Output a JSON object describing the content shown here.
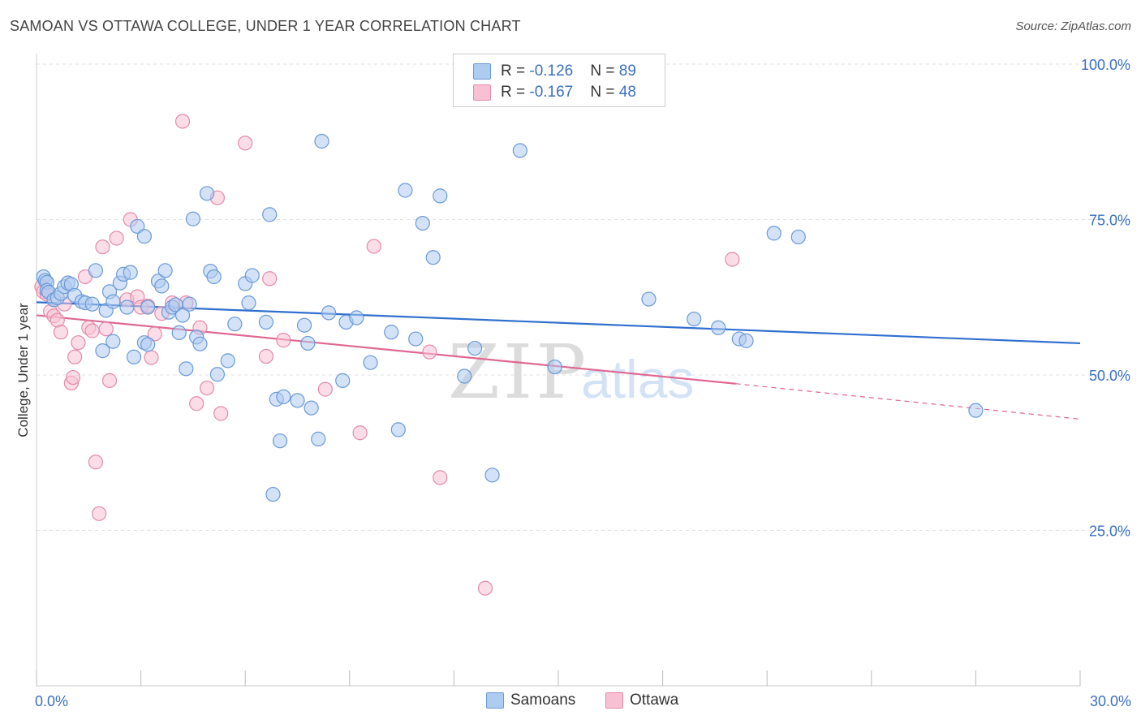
{
  "header": {
    "title": "SAMOAN VS OTTAWA COLLEGE, UNDER 1 YEAR CORRELATION CHART",
    "source": "Source: ZipAtlas.com"
  },
  "legend": {
    "rows": [
      {
        "r_label": "R = ",
        "r_value": "-0.126",
        "n_label": "N = ",
        "n_value": "89"
      },
      {
        "r_label": "R = ",
        "r_value": "-0.167",
        "n_label": "N = ",
        "n_value": "48"
      }
    ]
  },
  "bottom_legend": {
    "items": [
      "Samoans",
      "Ottawa"
    ]
  },
  "watermark": {
    "zip": "ZIP",
    "atlas": "atlas"
  },
  "colors": {
    "samoans_fill": "#aecbf0",
    "samoans_stroke": "#6a9ad8",
    "samoans_line": "#2f6fcf",
    "ottawa_fill": "#f7c1d3",
    "ottawa_stroke": "#e48aaa",
    "ottawa_line": "#e06792",
    "tick_label": "#3a6fc4",
    "grid": "#e2e2e2"
  },
  "chart_data": {
    "type": "scatter",
    "title": "SAMOAN VS OTTAWA COLLEGE, UNDER 1 YEAR CORRELATION CHART",
    "xlabel": "",
    "ylabel": "College, Under 1 year",
    "xlim": [
      0,
      30
    ],
    "ylim": [
      0,
      100
    ],
    "x_tick_labels": [
      "0.0%",
      "30.0%"
    ],
    "y_tick_labels": [
      "100.0%",
      "75.0%",
      "50.0%",
      "25.0%"
    ],
    "y_ticks": [
      100,
      75,
      50,
      25
    ],
    "grid": true,
    "legend_position": "top-center",
    "series": [
      {
        "name": "Samoans",
        "r": -0.126,
        "n": 89,
        "trend": {
          "x": [
            0,
            30
          ],
          "y": [
            61.7,
            55.1
          ]
        },
        "points": [
          [
            0.2,
            65.8
          ],
          [
            0.25,
            65.2
          ],
          [
            0.3,
            64.9
          ],
          [
            0.3,
            63.6
          ],
          [
            0.35,
            63.3
          ],
          [
            0.5,
            62.1
          ],
          [
            0.6,
            62.4
          ],
          [
            0.7,
            63.1
          ],
          [
            0.8,
            64.2
          ],
          [
            0.9,
            64.8
          ],
          [
            1.0,
            64.6
          ],
          [
            1.1,
            62.8
          ],
          [
            1.3,
            61.8
          ],
          [
            1.4,
            61.6
          ],
          [
            1.6,
            61.4
          ],
          [
            1.7,
            66.8
          ],
          [
            1.9,
            53.9
          ],
          [
            2.0,
            60.4
          ],
          [
            2.1,
            63.4
          ],
          [
            2.2,
            61.8
          ],
          [
            2.2,
            55.4
          ],
          [
            2.4,
            64.8
          ],
          [
            2.5,
            66.2
          ],
          [
            2.6,
            60.9
          ],
          [
            2.7,
            66.5
          ],
          [
            2.8,
            52.9
          ],
          [
            2.9,
            73.9
          ],
          [
            3.1,
            72.3
          ],
          [
            3.2,
            60.9
          ],
          [
            3.1,
            55.2
          ],
          [
            3.2,
            54.9
          ],
          [
            3.5,
            65.1
          ],
          [
            3.6,
            64.3
          ],
          [
            3.7,
            66.8
          ],
          [
            3.8,
            60.1
          ],
          [
            3.9,
            60.9
          ],
          [
            4.0,
            61.3
          ],
          [
            4.1,
            56.8
          ],
          [
            4.2,
            59.6
          ],
          [
            4.3,
            51.0
          ],
          [
            4.4,
            61.4
          ],
          [
            4.5,
            75.1
          ],
          [
            4.6,
            56.1
          ],
          [
            4.7,
            55.0
          ],
          [
            4.9,
            79.2
          ],
          [
            5.0,
            66.7
          ],
          [
            5.1,
            65.8
          ],
          [
            5.2,
            50.1
          ],
          [
            5.5,
            52.3
          ],
          [
            5.7,
            58.2
          ],
          [
            6.0,
            64.7
          ],
          [
            6.1,
            61.6
          ],
          [
            6.2,
            66.0
          ],
          [
            6.6,
            58.5
          ],
          [
            6.7,
            75.8
          ],
          [
            6.8,
            30.8
          ],
          [
            6.9,
            46.1
          ],
          [
            7.0,
            39.4
          ],
          [
            7.1,
            46.5
          ],
          [
            7.5,
            45.9
          ],
          [
            7.7,
            58.0
          ],
          [
            7.8,
            55.1
          ],
          [
            7.9,
            44.7
          ],
          [
            8.1,
            39.7
          ],
          [
            8.2,
            87.6
          ],
          [
            8.4,
            60.0
          ],
          [
            8.8,
            49.1
          ],
          [
            8.9,
            58.5
          ],
          [
            9.2,
            59.2
          ],
          [
            9.6,
            52.0
          ],
          [
            10.2,
            56.9
          ],
          [
            10.4,
            41.2
          ],
          [
            10.6,
            79.7
          ],
          [
            10.9,
            55.8
          ],
          [
            11.1,
            74.4
          ],
          [
            11.4,
            68.9
          ],
          [
            11.6,
            78.8
          ],
          [
            12.3,
            49.8
          ],
          [
            12.6,
            54.3
          ],
          [
            13.1,
            33.9
          ],
          [
            13.9,
            86.1
          ],
          [
            14.9,
            51.3
          ],
          [
            17.6,
            62.2
          ],
          [
            18.9,
            59.0
          ],
          [
            19.6,
            57.6
          ],
          [
            20.2,
            55.8
          ],
          [
            20.4,
            55.5
          ],
          [
            21.2,
            72.8
          ],
          [
            21.9,
            72.2
          ],
          [
            27.0,
            44.3
          ]
        ]
      },
      {
        "name": "Ottawa",
        "r": -0.167,
        "n": 48,
        "trend": {
          "x": [
            0,
            20.1
          ],
          "y": [
            59.6,
            48.6
          ]
        },
        "trend_dashed": {
          "x": [
            20.1,
            30
          ],
          "y": [
            48.6,
            42.9
          ]
        },
        "points": [
          [
            0.15,
            64.2
          ],
          [
            0.2,
            63.4
          ],
          [
            0.3,
            63.0
          ],
          [
            0.4,
            60.2
          ],
          [
            0.5,
            59.5
          ],
          [
            0.6,
            58.8
          ],
          [
            0.7,
            56.9
          ],
          [
            0.8,
            61.4
          ],
          [
            1.0,
            48.7
          ],
          [
            1.05,
            49.6
          ],
          [
            1.1,
            52.9
          ],
          [
            1.2,
            55.2
          ],
          [
            1.4,
            65.8
          ],
          [
            1.5,
            57.6
          ],
          [
            1.6,
            57.1
          ],
          [
            1.7,
            36.0
          ],
          [
            1.8,
            27.7
          ],
          [
            1.9,
            70.6
          ],
          [
            2.0,
            57.4
          ],
          [
            2.1,
            49.1
          ],
          [
            2.3,
            72.0
          ],
          [
            2.6,
            62.1
          ],
          [
            2.7,
            75.0
          ],
          [
            2.9,
            62.6
          ],
          [
            3.0,
            60.9
          ],
          [
            3.2,
            61.1
          ],
          [
            3.3,
            52.8
          ],
          [
            3.4,
            56.6
          ],
          [
            3.6,
            59.9
          ],
          [
            3.9,
            61.6
          ],
          [
            4.2,
            90.8
          ],
          [
            4.3,
            61.6
          ],
          [
            4.6,
            45.4
          ],
          [
            4.7,
            57.6
          ],
          [
            4.9,
            47.9
          ],
          [
            5.2,
            78.5
          ],
          [
            5.3,
            43.8
          ],
          [
            6.0,
            87.3
          ],
          [
            6.6,
            53.0
          ],
          [
            6.7,
            65.5
          ],
          [
            7.1,
            55.6
          ],
          [
            8.3,
            47.7
          ],
          [
            9.3,
            40.7
          ],
          [
            9.7,
            70.7
          ],
          [
            11.3,
            53.7
          ],
          [
            11.6,
            33.5
          ],
          [
            12.9,
            15.7
          ],
          [
            20.0,
            68.6
          ]
        ]
      }
    ]
  }
}
